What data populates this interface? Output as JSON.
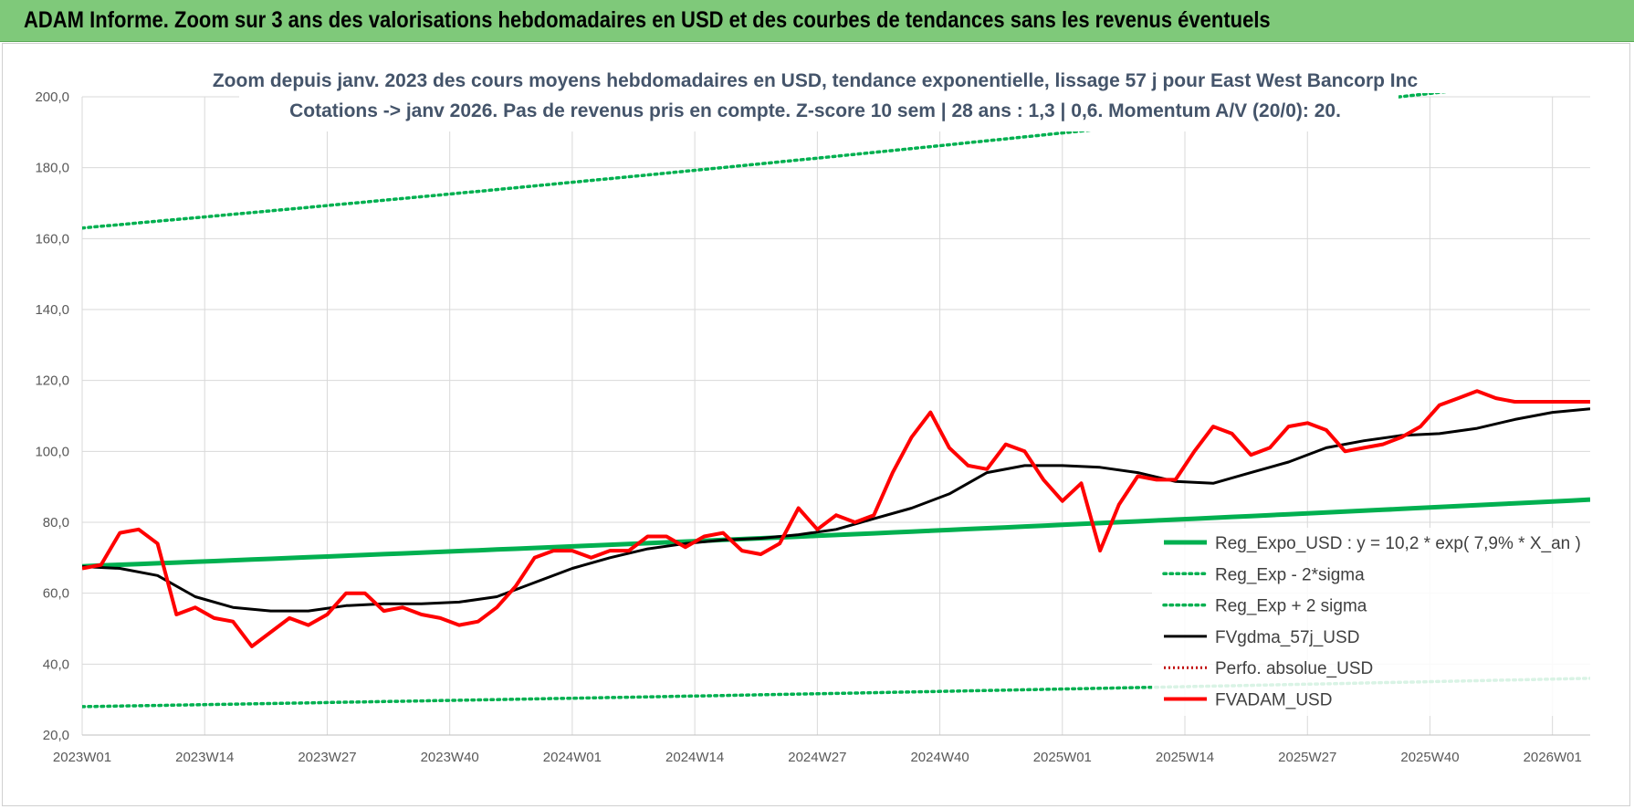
{
  "header": {
    "title": "ADAM Informe. Zoom sur 3 ans des valorisations hebdomadaires en USD et des courbes de tendances sans les revenus éventuels"
  },
  "chart_data": {
    "type": "line",
    "title": "Zoom depuis janv. 2023 des cours moyens hebdomadaires en USD, tendance exponentielle, lissage 57 j pour East West Bancorp Inc",
    "subtitle": "Cotations -> janv 2026. Pas de revenus pris en compte. Z-score 10 sem  | 28 ans : 1,3 | 0,6. Momentum A/V (20/0): 20.",
    "xlabel": "",
    "ylabel": "",
    "ylim": [
      20,
      200
    ],
    "yticks": [
      "20,0",
      "40,0",
      "60,0",
      "80,0",
      "100,0",
      "120,0",
      "140,0",
      "160,0",
      "180,0",
      "200,0"
    ],
    "ytick_values": [
      20,
      40,
      60,
      80,
      100,
      120,
      140,
      160,
      180,
      200
    ],
    "x_count": 160,
    "x_range": [
      0,
      160
    ],
    "xticks": [
      "2023W01",
      "2023W14",
      "2023W27",
      "2023W40",
      "2024W01",
      "2024W14",
      "2024W27",
      "2024W40",
      "2025W01",
      "2025W14",
      "2025W27",
      "2025W40",
      "2026W01"
    ],
    "xtick_positions": [
      0,
      13,
      26,
      39,
      52,
      65,
      78,
      91,
      104,
      117,
      130,
      143,
      156
    ],
    "grid": true,
    "legend_position": "bottom-right",
    "colors": {
      "reg": "#00b050",
      "sigma": "#00b050",
      "gdma": "#000000",
      "perfo": "#c00000",
      "fvadam": "#ff0000"
    },
    "series": [
      {
        "name": "Reg_Expo_USD : y = 10,2 * exp( 7,9% *  X_an )",
        "key": "reg",
        "style": "solid-thick",
        "x": [
          0,
          160
        ],
        "y": [
          67.6,
          86.4
        ]
      },
      {
        "name": "Reg_Exp - 2*sigma",
        "key": "sigma_minus",
        "style": "dotted",
        "x": [
          0,
          160
        ],
        "y": [
          28.0,
          36.0
        ]
      },
      {
        "name": "Reg_Exp + 2 sigma",
        "key": "sigma_plus",
        "style": "dotted",
        "x": [
          0,
          160
        ],
        "y": [
          163.0,
          206.0
        ]
      },
      {
        "name": "FVgdma_57j_USD",
        "key": "gdma",
        "style": "solid",
        "x": [
          0,
          4,
          8,
          12,
          16,
          20,
          24,
          28,
          32,
          36,
          40,
          44,
          48,
          52,
          56,
          60,
          64,
          68,
          72,
          76,
          80,
          84,
          88,
          92,
          96,
          100,
          104,
          108,
          112,
          116,
          120,
          124,
          128,
          132,
          136,
          140,
          144,
          148,
          152,
          156,
          160
        ],
        "y": [
          67.5,
          67.0,
          65.0,
          59.0,
          56.0,
          55.0,
          55.0,
          56.5,
          57.0,
          57.0,
          57.5,
          59.0,
          63.0,
          67.0,
          70.0,
          72.5,
          74.0,
          75.0,
          75.5,
          76.5,
          78.0,
          81.0,
          84.0,
          88.0,
          94.0,
          96.0,
          96.0,
          95.5,
          94.0,
          91.5,
          91.0,
          94.0,
          97.0,
          101.0,
          103.0,
          104.5,
          105.0,
          106.5,
          109.0,
          111.0,
          112.0
        ]
      },
      {
        "name": "Perfo. absolue_USD",
        "key": "perfo",
        "style": "dotted",
        "x": [],
        "y": []
      },
      {
        "name": "FVADAM_USD",
        "key": "fvadam",
        "style": "solid-thick",
        "x": [
          0,
          2,
          4,
          6,
          8,
          10,
          12,
          14,
          16,
          18,
          20,
          22,
          24,
          26,
          28,
          30,
          32,
          34,
          36,
          38,
          40,
          42,
          44,
          46,
          48,
          50,
          52,
          54,
          56,
          58,
          60,
          62,
          64,
          66,
          68,
          70,
          72,
          74,
          76,
          78,
          80,
          82,
          84,
          86,
          88,
          90,
          92,
          94,
          96,
          98,
          100,
          102,
          104,
          106,
          108,
          110,
          112,
          114,
          116,
          118,
          120,
          122,
          124,
          126,
          128,
          130,
          132,
          134,
          136,
          138,
          140,
          142,
          144,
          146,
          148,
          150,
          152,
          154,
          156,
          158,
          160
        ],
        "y": [
          67,
          68,
          77,
          78,
          74,
          54,
          56,
          53,
          52,
          45,
          49,
          53,
          51,
          54,
          60,
          60,
          55,
          56,
          54,
          53,
          51,
          52,
          56,
          62,
          70,
          72,
          72,
          70,
          72,
          72,
          76,
          76,
          73,
          76,
          77,
          72,
          71,
          74,
          84,
          78,
          82,
          80,
          82,
          94,
          104,
          111,
          101,
          96,
          95,
          102,
          100,
          92,
          86,
          91,
          72,
          85,
          93,
          92,
          92,
          100,
          107,
          105,
          99,
          101,
          107,
          108,
          106,
          100,
          101,
          102,
          104,
          107,
          113,
          115,
          117,
          115,
          114,
          114,
          114,
          114,
          114
        ]
      }
    ]
  }
}
